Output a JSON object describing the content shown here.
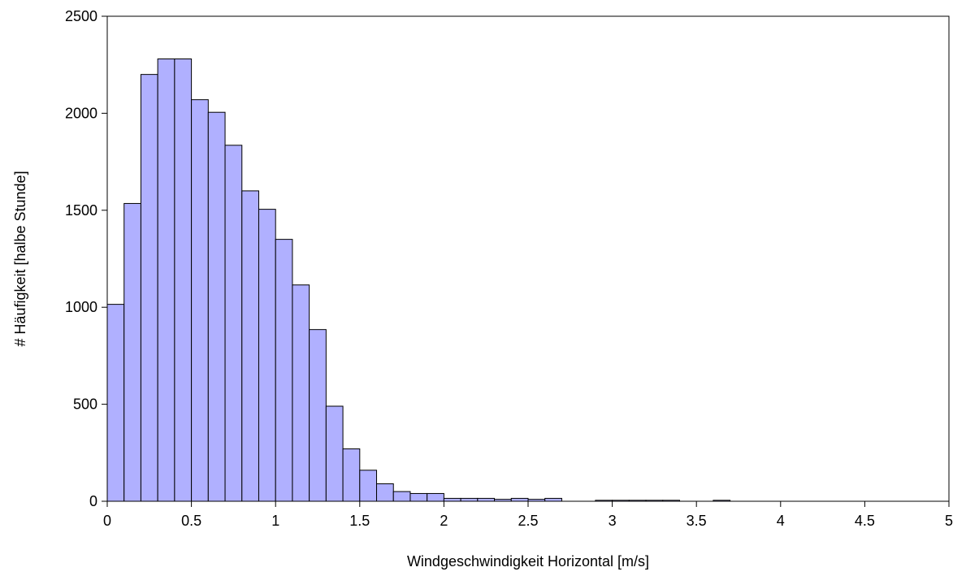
{
  "chart_data": {
    "type": "bar",
    "subtype": "histogram",
    "xlabel": "Windgeschwindigkeit Horizontal [m/s]",
    "ylabel": "# Häufigkeit [halbe Stunde]",
    "xlim": [
      0,
      5
    ],
    "ylim": [
      0,
      2500
    ],
    "bin_width": 0.1,
    "x_ticks": [
      "0",
      "0.5",
      "1",
      "1.5",
      "2",
      "2.5",
      "3",
      "3.5",
      "4",
      "4.5",
      "5"
    ],
    "y_ticks": [
      "0",
      "500",
      "1000",
      "1500",
      "2000",
      "2500"
    ],
    "bin_starts": [
      0.0,
      0.1,
      0.2,
      0.3,
      0.4,
      0.5,
      0.6,
      0.7,
      0.8,
      0.9,
      1.0,
      1.1,
      1.2,
      1.3,
      1.4,
      1.5,
      1.6,
      1.7,
      1.8,
      1.9,
      2.0,
      2.1,
      2.2,
      2.3,
      2.4,
      2.5,
      2.6,
      2.7,
      2.8,
      2.9,
      3.0,
      3.1,
      3.2,
      3.3,
      3.4,
      3.5,
      3.6
    ],
    "values": [
      1015,
      1535,
      2200,
      2280,
      2280,
      2070,
      2005,
      1835,
      1600,
      1505,
      1350,
      1115,
      885,
      490,
      270,
      160,
      90,
      50,
      40,
      40,
      15,
      15,
      15,
      10,
      15,
      10,
      15,
      0,
      0,
      5,
      5,
      5,
      5,
      5,
      0,
      0,
      5
    ],
    "bar_color": "#b0b0ff",
    "grid": false
  }
}
